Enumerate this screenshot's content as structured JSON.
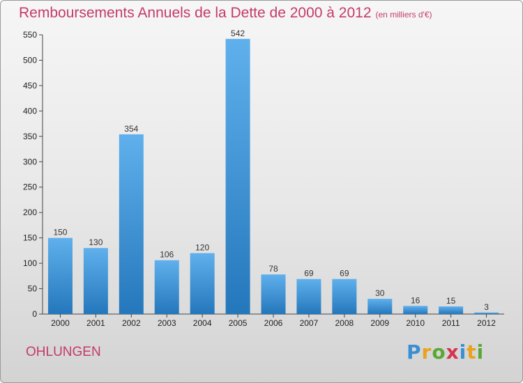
{
  "page": {
    "city": "OHLUNGEN",
    "logo_text": [
      "P",
      "r",
      "o",
      "x",
      "i",
      "t",
      "i"
    ]
  },
  "chart_data": {
    "type": "bar",
    "title": "Remboursements Annuels de la Dette de 2000 à 2012",
    "subtitle": "(en milliers d'€)",
    "categories": [
      "2000",
      "2001",
      "2002",
      "2003",
      "2004",
      "2005",
      "2006",
      "2007",
      "2008",
      "2009",
      "2010",
      "2011",
      "2012"
    ],
    "values": [
      150,
      130,
      354,
      106,
      120,
      542,
      78,
      69,
      69,
      30,
      16,
      15,
      3
    ],
    "ylim": [
      0,
      550
    ],
    "yticks": [
      0,
      50,
      100,
      150,
      200,
      250,
      300,
      350,
      400,
      450,
      500,
      550
    ],
    "grid": false,
    "bar_color": "#3f98dd",
    "bar_color_dark": "#2a7cc0",
    "title_color": "#c43a6a"
  }
}
